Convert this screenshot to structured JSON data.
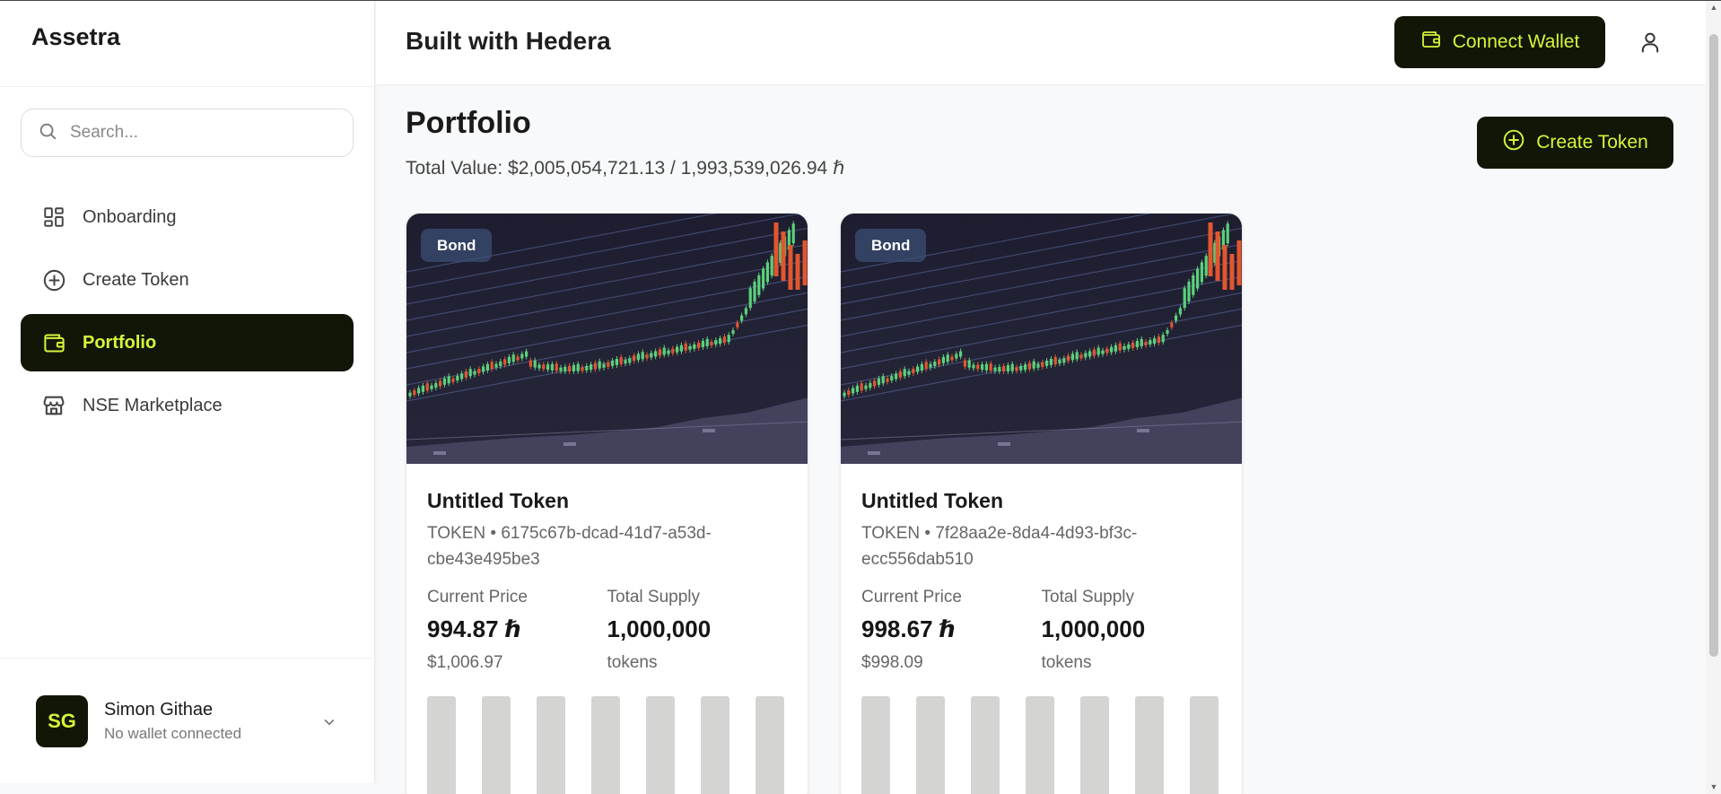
{
  "sidebar": {
    "brand": "Assetra",
    "search_placeholder": "Search...",
    "items": [
      {
        "label": "Onboarding",
        "icon": "layout-grid-icon",
        "active": false
      },
      {
        "label": "Create Token",
        "icon": "plus-circle-icon",
        "active": false
      },
      {
        "label": "Portfolio",
        "icon": "wallet-icon",
        "active": true
      },
      {
        "label": "NSE Marketplace",
        "icon": "store-icon",
        "active": false
      }
    ],
    "user": {
      "initials": "SG",
      "name": "Simon Githae",
      "status": "No wallet connected"
    }
  },
  "header": {
    "title": "Built with Hedera",
    "connect_label": "Connect Wallet"
  },
  "main": {
    "title": "Portfolio",
    "total_value": "Total Value: $2,005,054,721.13 / 1,993,539,026.94 ℏ",
    "create_label": "Create Token",
    "cards": [
      {
        "badge": "Bond",
        "name": "Untitled Token",
        "id_line1": "TOKEN • 6175c67b-dcad-41d7-a53d-",
        "id_line2": "cbe43e495be3",
        "price_label": "Current Price",
        "price": "994.87 ℏ",
        "price_usd": "$1,006.97",
        "supply_label": "Total Supply",
        "supply": "1,000,000",
        "supply_unit": "tokens"
      },
      {
        "badge": "Bond",
        "name": "Untitled Token",
        "id_line1": "TOKEN • 7f28aa2e-8da4-4d93-bf3c-",
        "id_line2": "ecc556dab510",
        "price_label": "Current Price",
        "price": "998.67 ℏ",
        "price_usd": "$998.09",
        "supply_label": "Total Supply",
        "supply": "1,000,000",
        "supply_unit": "tokens"
      }
    ]
  },
  "colors": {
    "accent": "#d6f53a",
    "dark": "#121606"
  }
}
